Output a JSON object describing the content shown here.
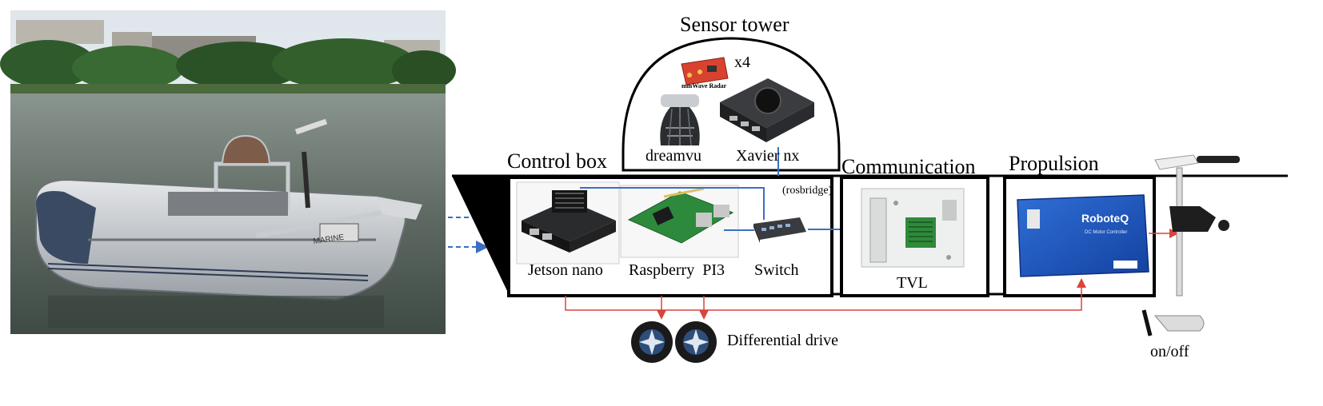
{
  "diagram": {
    "sensor_tower": {
      "title": "Sensor tower",
      "radar_label": "mmWave Radar",
      "radar_count": "x4",
      "camera_label": "dreamvu",
      "compute_label": "Xavier nx",
      "link_label": "(rosbridge)"
    },
    "control_box": {
      "title": "Control box",
      "items": [
        "Jetson nano",
        "Raspberry  PI3",
        "Switch"
      ]
    },
    "communication": {
      "title": "Communication",
      "item": "TVL"
    },
    "propulsion": {
      "title": "Propulsion",
      "controller_brand": "RoboteQ",
      "controller_sub": "DC Motor Controller"
    },
    "differential_drive": "Differential drive",
    "motor_switch": "on/off",
    "boat_text": "MARINE",
    "colors": {
      "data_link": "#3a6fc4",
      "power_link": "#d9453b",
      "box_border": "#000000"
    }
  }
}
